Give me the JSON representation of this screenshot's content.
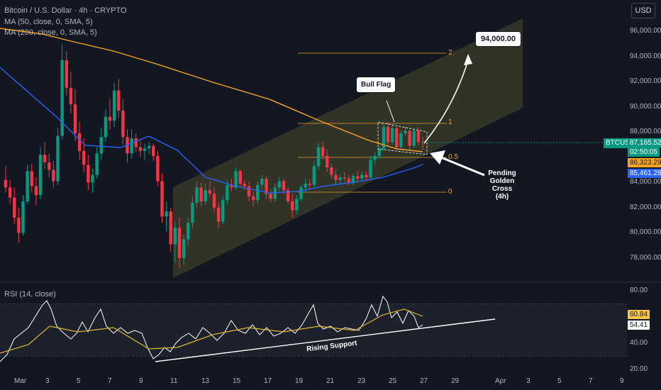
{
  "header": {
    "symbol_line": "Bitcoin / U.S. Dollar · 4h · CRYPTO",
    "ma1_line": "MA (50, close, 0, SMA, 5)",
    "ma2_line": "MA (200, close, 0, SMA, 5)",
    "currency": "USD"
  },
  "price_tags": {
    "symbol": "BTCUSD",
    "price": "87,165.52",
    "countdown": "02:50:05",
    "ma200_value": "86,323.29",
    "ma50_value": "85,461.28"
  },
  "rsi_panel": {
    "label": "RSI (14, close)",
    "value_main": "54.41",
    "value_signal": "60.84"
  },
  "annotations": {
    "target": "94,000.00",
    "bull_flag": "Bull Flag",
    "pending_cross": "Pending\nGolden\nCross\n(4h)",
    "rising_support": "Rising Support",
    "fib_2": "2",
    "fib_1": "1",
    "fib_05": "0.5",
    "fib_0": "0"
  },
  "colors": {
    "background": "#131722",
    "up_candle": "#089981",
    "down_candle": "#f23645",
    "ma50": "#2962ff",
    "ma200": "#f7a521",
    "channel": "#4a4a2a",
    "rsi_line": "#ffffff",
    "rsi_ma": "#e0b530"
  },
  "chart_data": {
    "type": "candlestick",
    "y_axis": {
      "ticks": [
        "96,000.00",
        "94,000.00",
        "92,000.00",
        "90,000.00",
        "88,000.00",
        "84,000.00",
        "82,000.00",
        "80,000.00",
        "78,000.00"
      ],
      "range": [
        76500,
        97500
      ]
    },
    "x_axis": {
      "ticks": [
        "Mar",
        "3",
        "5",
        "7",
        "9",
        "11",
        "13",
        "15",
        "17",
        "19",
        "21",
        "23",
        "25",
        "27",
        "29",
        "Apr",
        "3",
        "5",
        "7",
        "9"
      ]
    },
    "rsi_axis": {
      "ticks": [
        "80.00",
        "40.00",
        "20.00"
      ],
      "range": [
        18,
        84
      ]
    },
    "candles": [
      [
        84200,
        85300,
        83200,
        83600
      ],
      [
        83600,
        84200,
        82300,
        82800
      ],
      [
        82800,
        83600,
        80700,
        81200
      ],
      [
        81200,
        82000,
        79200,
        80000
      ],
      [
        80000,
        83000,
        79800,
        82500
      ],
      [
        82500,
        85400,
        82300,
        84900
      ],
      [
        84900,
        85500,
        83200,
        83700
      ],
      [
        83700,
        84400,
        82200,
        83000
      ],
      [
        83000,
        86800,
        82700,
        86200
      ],
      [
        86200,
        87200,
        85100,
        85600
      ],
      [
        85600,
        86300,
        84400,
        85000
      ],
      [
        85000,
        85700,
        83600,
        84100
      ],
      [
        84100,
        88300,
        83800,
        87700
      ],
      [
        87700,
        95000,
        87400,
        93700
      ],
      [
        93700,
        94400,
        90900,
        91500
      ],
      [
        91500,
        92800,
        89500,
        90200
      ],
      [
        90200,
        91400,
        87300,
        87900
      ],
      [
        87900,
        88800,
        85800,
        86500
      ],
      [
        86500,
        87500,
        84800,
        85400
      ],
      [
        85400,
        86200,
        83400,
        84000
      ],
      [
        84000,
        85100,
        83200,
        84600
      ],
      [
        84600,
        86800,
        84300,
        86300
      ],
      [
        86300,
        88300,
        85800,
        87600
      ],
      [
        87600,
        89800,
        87200,
        89200
      ],
      [
        89200,
        90600,
        88200,
        88900
      ],
      [
        88900,
        91900,
        88400,
        91300
      ],
      [
        91300,
        92200,
        89100,
        89700
      ],
      [
        89700,
        90600,
        87000,
        87600
      ],
      [
        87600,
        88200,
        85600,
        86300
      ],
      [
        86300,
        88200,
        85900,
        87500
      ],
      [
        87500,
        87900,
        86400,
        86800
      ],
      [
        86800,
        87400,
        86000,
        86500
      ],
      [
        86500,
        87100,
        85800,
        86700
      ],
      [
        86700,
        87200,
        86200,
        86900
      ],
      [
        86900,
        87100,
        85700,
        86100
      ],
      [
        86100,
        86500,
        83700,
        84100
      ],
      [
        84100,
        84700,
        80800,
        81300
      ],
      [
        81300,
        82500,
        80100,
        81700
      ],
      [
        81700,
        82000,
        78500,
        79100
      ],
      [
        79100,
        80900,
        77600,
        80400
      ],
      [
        80400,
        81200,
        77200,
        78000
      ],
      [
        78000,
        79900,
        77500,
        79500
      ],
      [
        79500,
        81200,
        79000,
        80800
      ],
      [
        80800,
        82900,
        80300,
        82400
      ],
      [
        82400,
        84100,
        82000,
        83600
      ],
      [
        83600,
        84000,
        82100,
        82500
      ],
      [
        82500,
        83900,
        82200,
        83400
      ],
      [
        83400,
        84100,
        82800,
        83100
      ],
      [
        83100,
        83600,
        81600,
        82000
      ],
      [
        82000,
        82400,
        80400,
        80900
      ],
      [
        80900,
        82900,
        80700,
        82600
      ],
      [
        82600,
        84200,
        82300,
        83800
      ],
      [
        83800,
        84300,
        83300,
        83600
      ],
      [
        83600,
        85200,
        83400,
        84900
      ],
      [
        84900,
        85000,
        83600,
        83900
      ],
      [
        83900,
        84200,
        83400,
        83700
      ],
      [
        83700,
        84100,
        82500,
        82900
      ],
      [
        82900,
        83300,
        82100,
        82600
      ],
      [
        82600,
        84100,
        82300,
        83800
      ],
      [
        83800,
        84600,
        83400,
        84300
      ],
      [
        84300,
        84500,
        82700,
        83100
      ],
      [
        83100,
        83500,
        82400,
        82700
      ],
      [
        82700,
        83900,
        82500,
        83600
      ],
      [
        83600,
        84400,
        83300,
        84100
      ],
      [
        84100,
        84300,
        83100,
        83400
      ],
      [
        83400,
        83600,
        82300,
        82500
      ],
      [
        82500,
        83100,
        81200,
        81800
      ],
      [
        81800,
        83000,
        81500,
        82700
      ],
      [
        82700,
        83800,
        82500,
        83600
      ],
      [
        83600,
        84300,
        83200,
        83900
      ],
      [
        83900,
        84200,
        83500,
        83800
      ],
      [
        83800,
        85700,
        83600,
        85300
      ],
      [
        85300,
        87200,
        85000,
        86800
      ],
      [
        86800,
        87300,
        85800,
        86100
      ],
      [
        86100,
        86600,
        84800,
        85200
      ],
      [
        85200,
        85500,
        84300,
        84600
      ],
      [
        84600,
        85000,
        83800,
        84200
      ],
      [
        84200,
        84700,
        83900,
        84400
      ],
      [
        84400,
        84800,
        84000,
        84300
      ],
      [
        84300,
        84600,
        83800,
        84000
      ],
      [
        84000,
        84700,
        83800,
        84500
      ],
      [
        84500,
        84900,
        84100,
        84300
      ],
      [
        84300,
        84800,
        84100,
        84600
      ],
      [
        84600,
        84900,
        84200,
        84400
      ],
      [
        84400,
        86100,
        84300,
        85800
      ],
      [
        85800,
        86400,
        85400,
        86100
      ],
      [
        86100,
        86900,
        85900,
        86700
      ],
      [
        86700,
        88700,
        86500,
        88400
      ],
      [
        88400,
        88800,
        86900,
        87200
      ],
      [
        87200,
        88600,
        87000,
        88300
      ],
      [
        88300,
        88400,
        86600,
        86800
      ],
      [
        86800,
        88100,
        86700,
        87900
      ],
      [
        87900,
        88400,
        87700,
        88100
      ],
      [
        88100,
        88200,
        86600,
        86900
      ],
      [
        86900,
        88300,
        86700,
        88100
      ],
      [
        88100,
        88400,
        86900,
        87200
      ],
      [
        87200,
        87600,
        86600,
        87165
      ]
    ],
    "ma50_label": "MA 50",
    "ma200_label": "MA 200"
  }
}
